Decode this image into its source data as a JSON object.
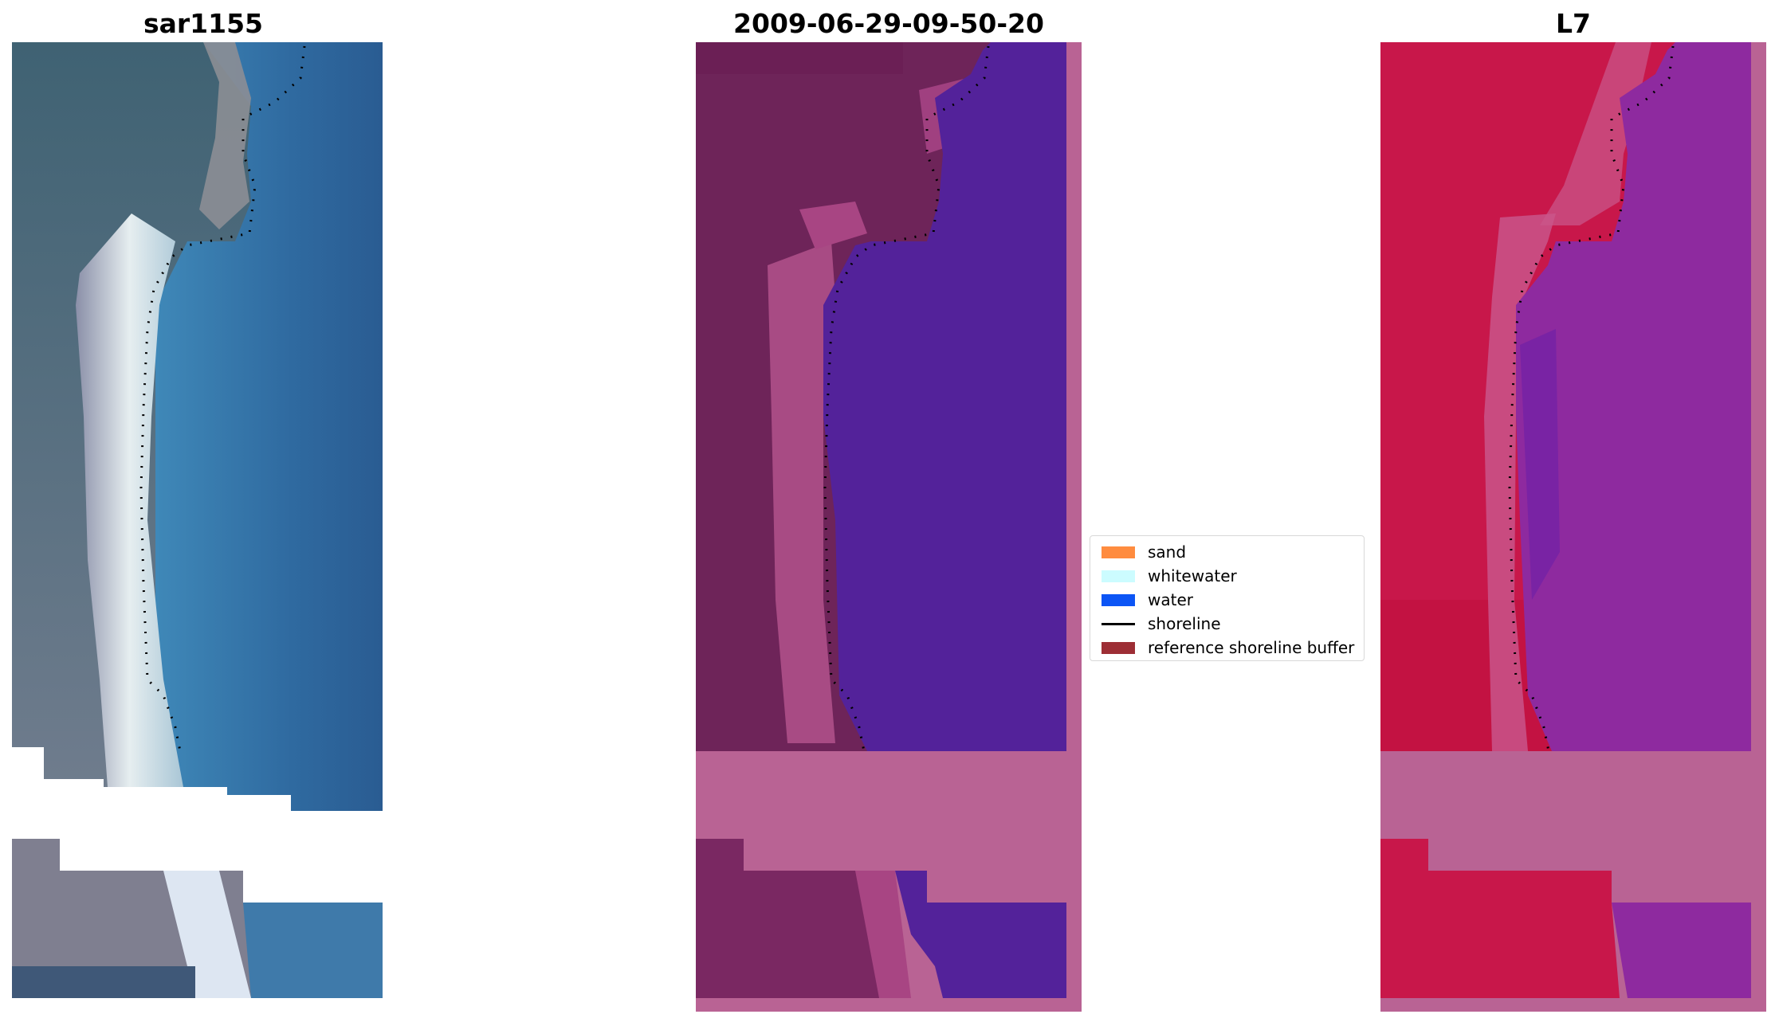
{
  "figure": {
    "panels": [
      {
        "title": "sar1155",
        "style": "rgb"
      },
      {
        "title": "2009-06-29-09-50-20",
        "style": "classified"
      },
      {
        "title": "L7",
        "style": "mndwi"
      }
    ]
  },
  "legend": {
    "items": [
      {
        "label": "sand",
        "color": "#ff8c3f",
        "kind": "patch"
      },
      {
        "label": "whitewater",
        "color": "#ccfcff",
        "kind": "patch"
      },
      {
        "label": "water",
        "color": "#0c55f5",
        "kind": "patch"
      },
      {
        "label": "shoreline",
        "color": "#000000",
        "kind": "line"
      },
      {
        "label": "reference shoreline buffer",
        "color": "#9d2e35",
        "kind": "patch"
      }
    ]
  }
}
